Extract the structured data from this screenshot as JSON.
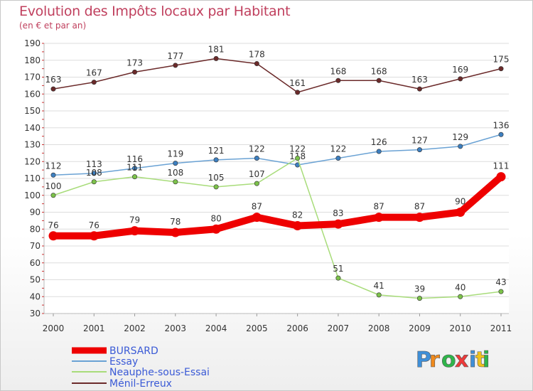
{
  "chart_data": {
    "type": "line",
    "title": "Evolution des Impôts locaux par Habitant",
    "subtitle": "(en € et par an)",
    "xlabel": "",
    "ylabel": "",
    "x": [
      "2000",
      "2001",
      "2002",
      "2003",
      "2004",
      "2005",
      "2006",
      "2007",
      "2008",
      "2009",
      "2010",
      "2011"
    ],
    "ylim": [
      30,
      190
    ],
    "yticks": [
      30,
      40,
      50,
      60,
      70,
      80,
      90,
      100,
      110,
      120,
      130,
      140,
      150,
      160,
      170,
      180,
      190
    ],
    "grid": true,
    "legend_position": "bottom-left",
    "series": [
      {
        "name": "Ménil-Erreux",
        "color": "#6b2a2a",
        "values": [
          163,
          167,
          173,
          177,
          181,
          178,
          161,
          168,
          168,
          163,
          169,
          175
        ]
      },
      {
        "name": "Essay",
        "color": "#6aa2d4",
        "marker": "#3d7fc0",
        "values": [
          112,
          113,
          116,
          119,
          121,
          122,
          118,
          122,
          126,
          127,
          129,
          136
        ]
      },
      {
        "name": "Neauphe-sous-Essai",
        "color": "#a8dc7a",
        "marker": "#7cc24a",
        "values": [
          100,
          108,
          111,
          108,
          105,
          107,
          122,
          51,
          41,
          39,
          40,
          43
        ]
      },
      {
        "name": "BURSARD",
        "color": "#ee0000",
        "values": [
          76,
          76,
          79,
          78,
          80,
          87,
          82,
          83,
          87,
          87,
          90,
          111
        ]
      }
    ],
    "legend": [
      "BURSARD",
      "Essay",
      "Neauphe-sous-Essai",
      "Ménil-Erreux"
    ]
  },
  "logo": {
    "letters": [
      "P",
      "r",
      "o",
      "x",
      "i",
      "t",
      "i"
    ],
    "colors": [
      "#3f8fd8",
      "#f08a1c",
      "#2fb54a",
      "#ee3a3a",
      "#3f8fd8",
      "#f0c21c",
      "#2fb54a"
    ]
  }
}
